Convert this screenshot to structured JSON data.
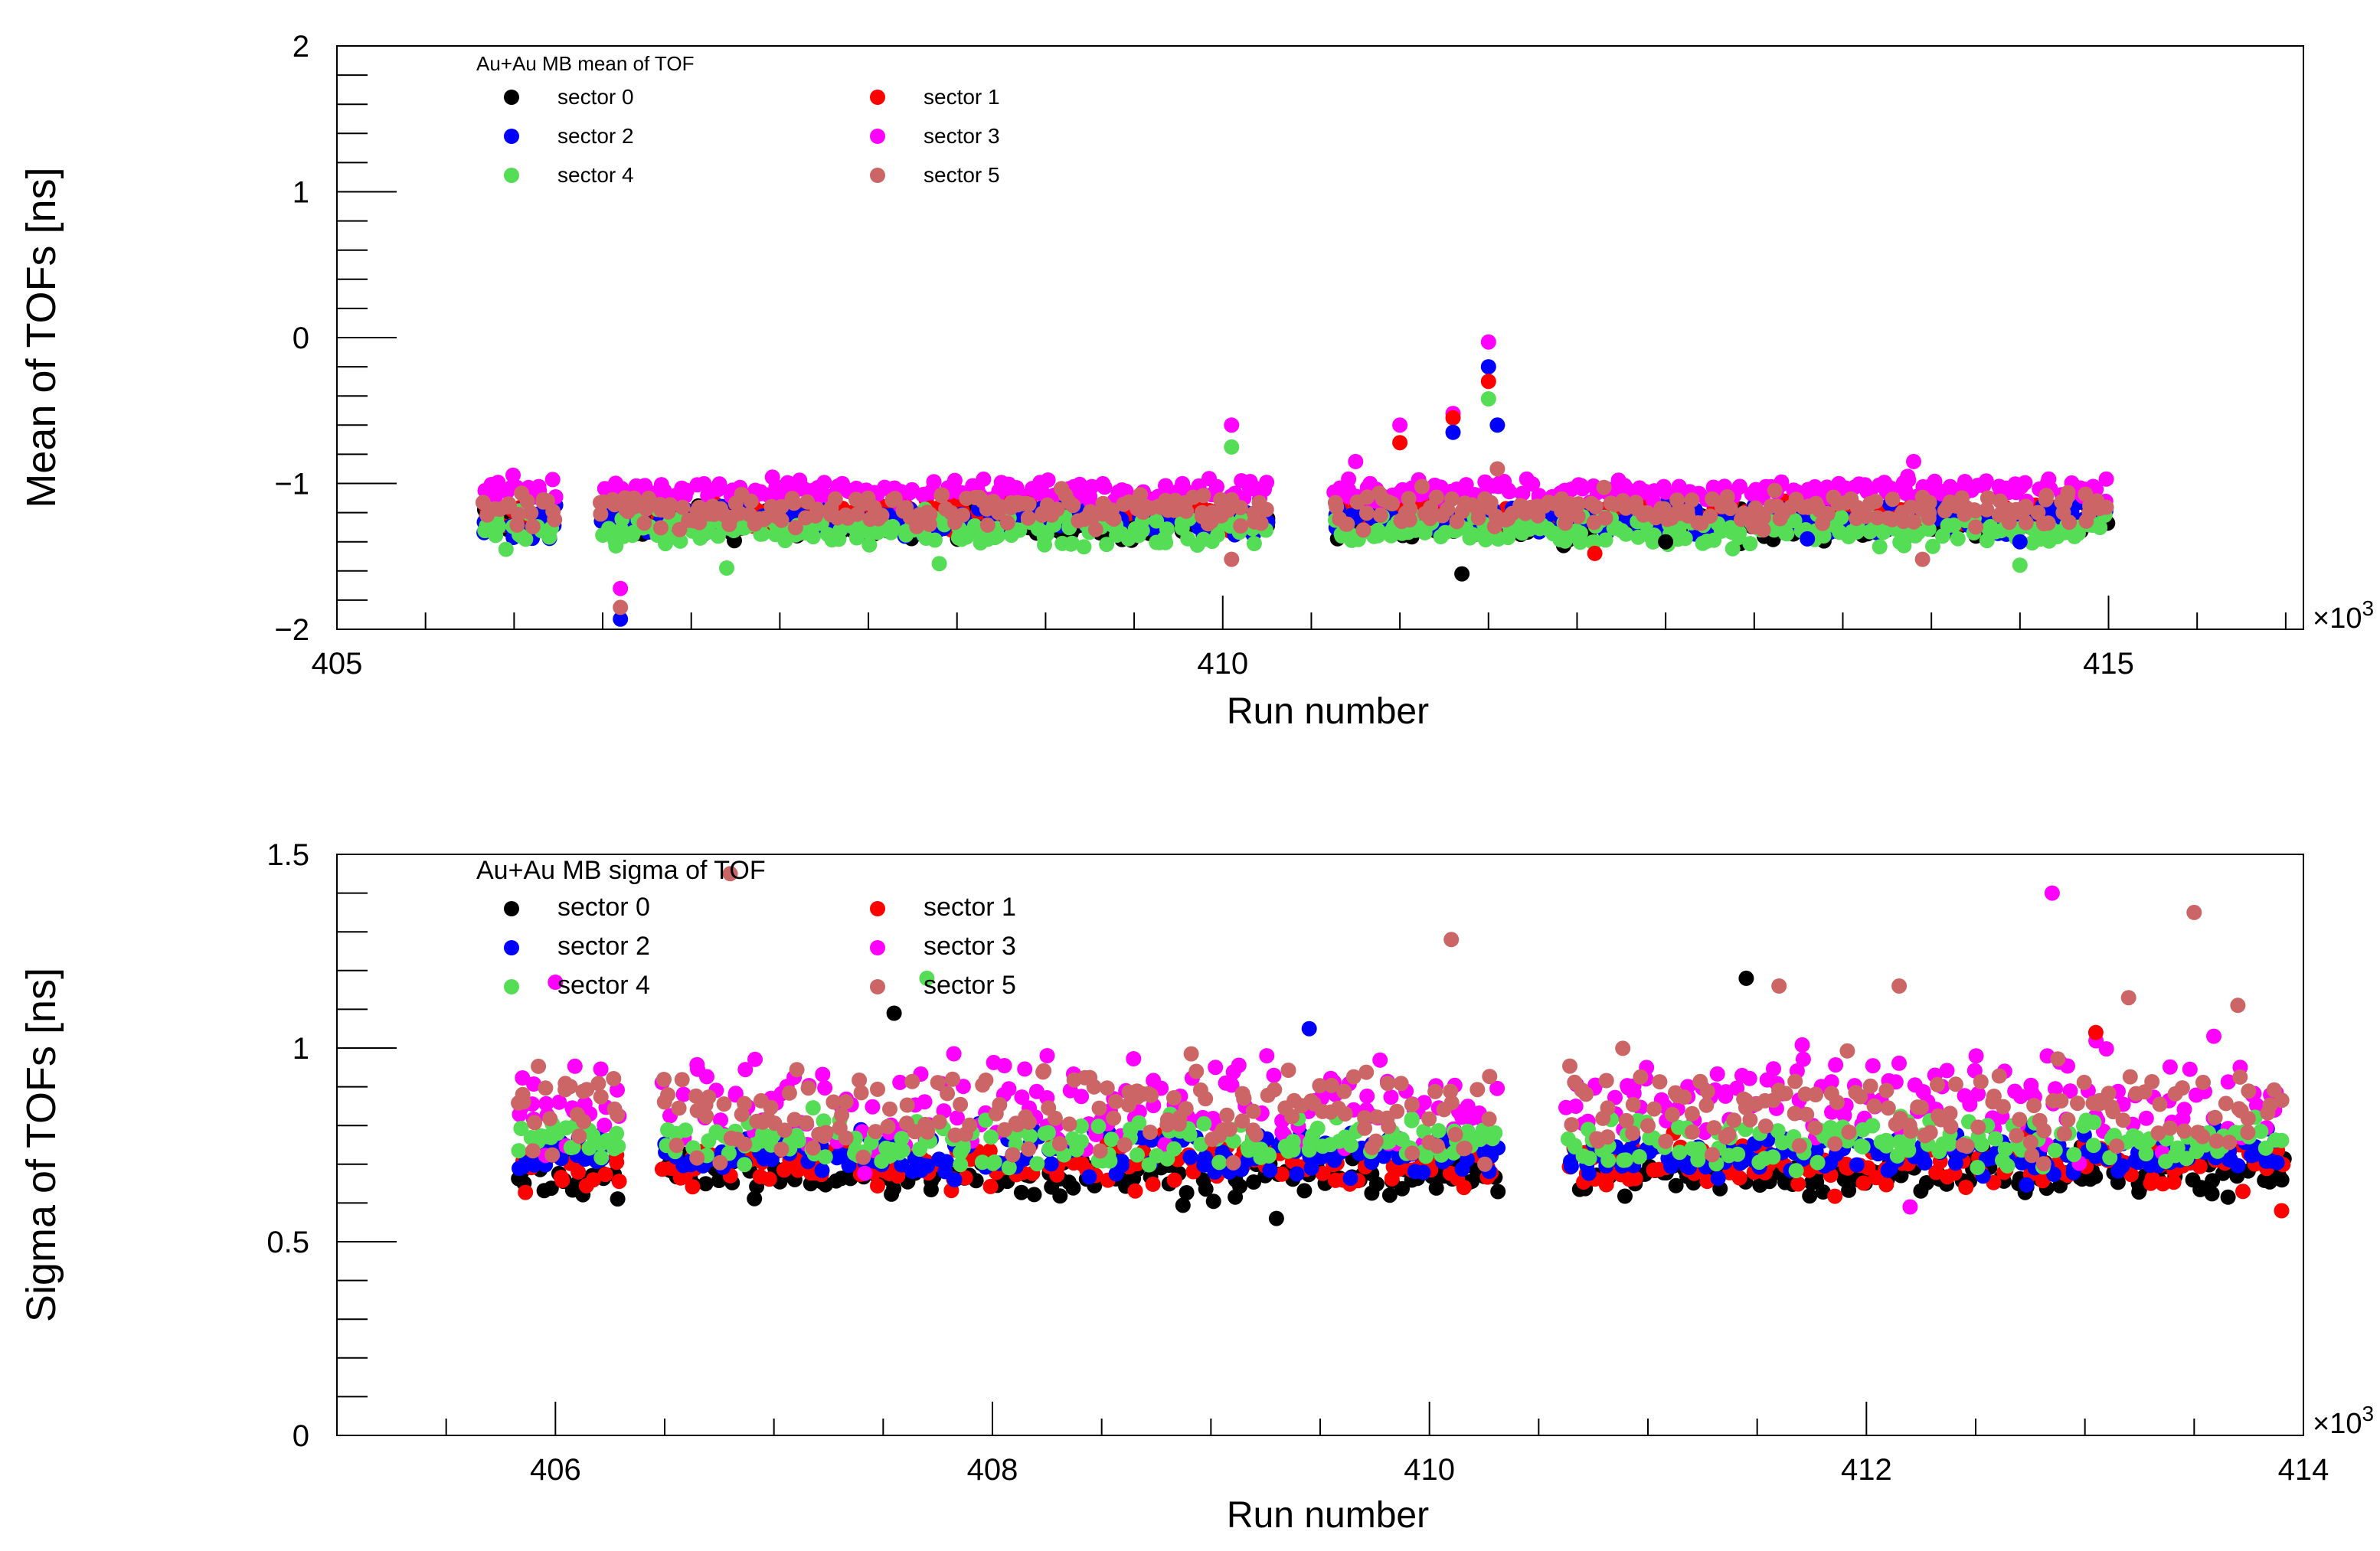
{
  "chart_data": [
    {
      "type": "scatter",
      "title": "Au+Au MB mean of TOF",
      "xlabel": "Run number",
      "ylabel": "Mean of TOFs [ns]",
      "x_multiplier_label": "×10",
      "x_multiplier_exp": "3",
      "xlim": [
        405,
        416.1
      ],
      "ylim": [
        -2,
        2
      ],
      "xticks": [
        405,
        410,
        415
      ],
      "xtick_labels": [
        "405",
        "410",
        "415"
      ],
      "yticks": [
        -2,
        -1,
        0,
        1,
        2
      ],
      "ytick_labels": [
        "−2",
        "−1",
        "0",
        "1",
        "2"
      ],
      "grid": false,
      "legend_position": "top-left",
      "run_range": [
        405.85,
        415.0
      ],
      "gaps": [
        [
          406.25,
          406.5
        ],
        [
          410.25,
          410.6
        ]
      ],
      "series": [
        {
          "name": "sector 0",
          "color": "#000000",
          "base": -1.28,
          "spread": 0.1
        },
        {
          "name": "sector 1",
          "color": "#ff0000",
          "base": -1.22,
          "spread": 0.1
        },
        {
          "name": "sector 2",
          "color": "#0000ff",
          "base": -1.25,
          "spread": 0.1
        },
        {
          "name": "sector 3",
          "color": "#ff00ff",
          "base": -1.05,
          "spread": 0.08
        },
        {
          "name": "sector 4",
          "color": "#55dd55",
          "base": -1.32,
          "spread": 0.1
        },
        {
          "name": "sector 5",
          "color": "#cc6666",
          "base": -1.18,
          "spread": 0.12
        }
      ],
      "highlights": [
        {
          "x": 406.6,
          "y": -1.93,
          "color": "#0000ff"
        },
        {
          "x": 406.6,
          "y": -1.85,
          "color": "#cc6666"
        },
        {
          "x": 406.6,
          "y": -1.72,
          "color": "#ff00ff"
        },
        {
          "x": 407.2,
          "y": -1.58,
          "color": "#55dd55"
        },
        {
          "x": 408.4,
          "y": -1.55,
          "color": "#55dd55"
        },
        {
          "x": 410.05,
          "y": -0.6,
          "color": "#ff00ff"
        },
        {
          "x": 410.05,
          "y": -0.75,
          "color": "#55dd55"
        },
        {
          "x": 410.05,
          "y": -1.52,
          "color": "#cc6666"
        },
        {
          "x": 410.75,
          "y": -0.85,
          "color": "#ff00ff"
        },
        {
          "x": 411.0,
          "y": -0.6,
          "color": "#ff00ff"
        },
        {
          "x": 411.0,
          "y": -0.72,
          "color": "#ff0000"
        },
        {
          "x": 411.3,
          "y": -0.52,
          "color": "#ff00ff"
        },
        {
          "x": 411.3,
          "y": -0.55,
          "color": "#ff0000"
        },
        {
          "x": 411.3,
          "y": -0.65,
          "color": "#0000ff"
        },
        {
          "x": 411.5,
          "y": -0.03,
          "color": "#ff00ff"
        },
        {
          "x": 411.5,
          "y": -0.2,
          "color": "#0000ff"
        },
        {
          "x": 411.5,
          "y": -0.3,
          "color": "#ff0000"
        },
        {
          "x": 411.5,
          "y": -0.42,
          "color": "#55dd55"
        },
        {
          "x": 411.55,
          "y": -0.6,
          "color": "#0000ff"
        },
        {
          "x": 411.55,
          "y": -0.9,
          "color": "#cc6666"
        },
        {
          "x": 411.35,
          "y": -1.62,
          "color": "#000000"
        },
        {
          "x": 412.1,
          "y": -1.48,
          "color": "#ff0000"
        },
        {
          "x": 412.5,
          "y": -1.4,
          "color": "#000000"
        },
        {
          "x": 413.3,
          "y": -1.38,
          "color": "#0000ff"
        },
        {
          "x": 413.9,
          "y": -0.85,
          "color": "#ff00ff"
        },
        {
          "x": 413.95,
          "y": -1.52,
          "color": "#cc6666"
        },
        {
          "x": 414.5,
          "y": -1.56,
          "color": "#55dd55"
        },
        {
          "x": 414.5,
          "y": -1.4,
          "color": "#0000ff"
        }
      ]
    },
    {
      "type": "scatter",
      "title": "Au+Au MB sigma of TOF",
      "xlabel": "Run number",
      "ylabel": "Sigma of TOFs [ns]",
      "x_multiplier_label": "×10",
      "x_multiplier_exp": "3",
      "xlim": [
        405,
        414
      ],
      "ylim": [
        0,
        1.5
      ],
      "xticks": [
        406,
        408,
        410,
        412,
        414
      ],
      "xtick_labels": [
        "406",
        "408",
        "410",
        "412",
        "414"
      ],
      "yticks": [
        0,
        0.5,
        1,
        1.5
      ],
      "ytick_labels": [
        "0",
        "0.5",
        "1",
        "1.5"
      ],
      "grid": false,
      "legend_position": "top-left",
      "run_range": [
        405.85,
        413.95
      ],
      "gaps": [
        [
          406.3,
          406.5
        ],
        [
          410.3,
          410.6
        ]
      ],
      "series": [
        {
          "name": "sector 0",
          "color": "#000000",
          "base": 0.67,
          "spread": 0.05
        },
        {
          "name": "sector 1",
          "color": "#ff0000",
          "base": 0.7,
          "spread": 0.06
        },
        {
          "name": "sector 2",
          "color": "#0000ff",
          "base": 0.73,
          "spread": 0.06
        },
        {
          "name": "sector 3",
          "color": "#ff00ff",
          "base": 0.86,
          "spread": 0.12
        },
        {
          "name": "sector 4",
          "color": "#55dd55",
          "base": 0.76,
          "spread": 0.06
        },
        {
          "name": "sector 5",
          "color": "#cc6666",
          "base": 0.84,
          "spread": 0.12
        }
      ],
      "highlights": [
        {
          "x": 406.0,
          "y": 1.17,
          "color": "#ff00ff"
        },
        {
          "x": 406.8,
          "y": 1.45,
          "color": "#cc6666"
        },
        {
          "x": 407.55,
          "y": 1.09,
          "color": "#000000"
        },
        {
          "x": 407.7,
          "y": 1.18,
          "color": "#55dd55"
        },
        {
          "x": 409.3,
          "y": 0.56,
          "color": "#000000"
        },
        {
          "x": 409.45,
          "y": 1.05,
          "color": "#0000ff"
        },
        {
          "x": 410.1,
          "y": 1.28,
          "color": "#cc6666"
        },
        {
          "x": 411.45,
          "y": 1.18,
          "color": "#000000"
        },
        {
          "x": 411.6,
          "y": 1.16,
          "color": "#cc6666"
        },
        {
          "x": 412.15,
          "y": 1.16,
          "color": "#cc6666"
        },
        {
          "x": 412.2,
          "y": 0.59,
          "color": "#ff00ff"
        },
        {
          "x": 412.85,
          "y": 1.4,
          "color": "#ff00ff"
        },
        {
          "x": 413.05,
          "y": 1.04,
          "color": "#ff0000"
        },
        {
          "x": 413.2,
          "y": 1.13,
          "color": "#cc6666"
        },
        {
          "x": 413.5,
          "y": 1.35,
          "color": "#cc6666"
        },
        {
          "x": 413.7,
          "y": 1.11,
          "color": "#cc6666"
        },
        {
          "x": 413.9,
          "y": 0.58,
          "color": "#ff0000"
        }
      ]
    }
  ]
}
